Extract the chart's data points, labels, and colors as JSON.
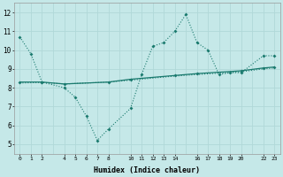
{
  "xlabel": "Humidex (Indice chaleur)",
  "background_color": "#c5e8e8",
  "grid_color": "#b0d8d8",
  "line_color": "#1a7a6e",
  "xlim": [
    -0.5,
    23.5
  ],
  "ylim": [
    4.5,
    12.5
  ],
  "xticks": [
    0,
    1,
    2,
    4,
    5,
    6,
    7,
    8,
    10,
    11,
    12,
    13,
    14,
    16,
    17,
    18,
    19,
    20,
    22,
    23
  ],
  "yticks": [
    5,
    6,
    7,
    8,
    9,
    10,
    11,
    12
  ],
  "series1_x": [
    0,
    1,
    2,
    4,
    5,
    6,
    7,
    8,
    10,
    11,
    12,
    13,
    14,
    15,
    16,
    17,
    18,
    19,
    20,
    22,
    23
  ],
  "series1_y": [
    10.7,
    9.8,
    8.3,
    8.0,
    7.5,
    6.5,
    5.2,
    5.8,
    6.9,
    8.7,
    10.2,
    10.4,
    11.0,
    11.9,
    10.4,
    10.0,
    8.7,
    8.8,
    8.8,
    9.7,
    9.7
  ],
  "series2_x": [
    0,
    2,
    4,
    8,
    10,
    14,
    16,
    20,
    22,
    23
  ],
  "series2_y": [
    8.3,
    8.3,
    8.2,
    8.3,
    8.45,
    8.65,
    8.75,
    8.9,
    9.05,
    9.1
  ],
  "series3_x": [
    0,
    2,
    4,
    8,
    10,
    14,
    16,
    20,
    22,
    23
  ],
  "series3_y": [
    8.25,
    8.28,
    8.2,
    8.3,
    8.4,
    8.62,
    8.7,
    8.85,
    9.0,
    9.05
  ]
}
